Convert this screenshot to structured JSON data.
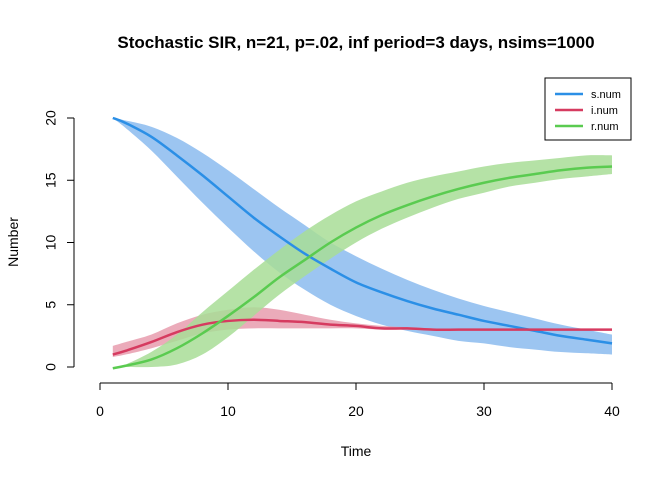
{
  "chart_data": {
    "type": "line",
    "title": "Stochastic SIR, n=21, p=.02, inf period=3 days, nsims=1000",
    "xlabel": "Time",
    "ylabel": "Number",
    "xlim": [
      0,
      40
    ],
    "ylim": [
      0,
      20
    ],
    "xticks": [
      0,
      10,
      20,
      30,
      40
    ],
    "yticks": [
      0,
      5,
      10,
      15,
      20
    ],
    "legend_position": "top-right",
    "grid": false,
    "x": [
      1,
      2,
      4,
      6,
      8,
      10,
      12,
      14,
      16,
      18,
      20,
      22,
      24,
      26,
      28,
      30,
      32,
      34,
      36,
      38,
      40
    ],
    "series": [
      {
        "name": "s.num",
        "color": "#2B8FE6",
        "band_color": "#8BBBEE",
        "mean": [
          20.0,
          19.6,
          18.5,
          17.0,
          15.4,
          13.7,
          12.0,
          10.5,
          9.1,
          7.9,
          6.8,
          6.0,
          5.3,
          4.7,
          4.2,
          3.7,
          3.3,
          2.9,
          2.5,
          2.2,
          1.9
        ],
        "lower": [
          20.0,
          19.2,
          17.4,
          15.3,
          13.2,
          11.2,
          9.3,
          7.6,
          6.2,
          5.0,
          4.1,
          3.4,
          2.9,
          2.5,
          2.1,
          1.9,
          1.6,
          1.4,
          1.2,
          1.1,
          1.0
        ],
        "upper": [
          20.0,
          19.8,
          19.3,
          18.4,
          17.2,
          15.8,
          14.3,
          12.8,
          11.4,
          10.0,
          8.9,
          7.9,
          7.0,
          6.2,
          5.5,
          4.9,
          4.4,
          3.9,
          3.4,
          3.0,
          2.6
        ]
      },
      {
        "name": "i.num",
        "color": "#D63B60",
        "band_color": "#E89CAE",
        "mean": [
          1.0,
          1.3,
          2.0,
          2.8,
          3.4,
          3.7,
          3.8,
          3.7,
          3.6,
          3.4,
          3.3,
          3.1,
          3.1,
          3.0,
          3.0,
          3.0,
          3.0,
          3.0,
          3.0,
          3.0,
          3.0
        ],
        "lower": [
          0.8,
          1.0,
          1.5,
          2.1,
          2.7,
          3.0,
          3.1,
          3.1,
          3.1,
          3.1,
          3.1,
          3.0,
          3.0,
          3.0,
          3.0,
          3.0,
          3.0,
          3.0,
          3.0,
          3.0,
          3.0
        ],
        "upper": [
          1.7,
          2.0,
          2.6,
          3.5,
          4.2,
          4.6,
          4.8,
          4.6,
          4.2,
          3.8,
          3.5,
          3.3,
          3.2,
          3.1,
          3.0,
          3.0,
          3.0,
          3.0,
          3.0,
          3.0,
          3.0
        ]
      },
      {
        "name": "r.num",
        "color": "#5ACB50",
        "band_color": "#A8DD96",
        "mean": [
          -0.1,
          0.1,
          0.6,
          1.5,
          2.7,
          4.1,
          5.6,
          7.2,
          8.6,
          10.0,
          11.2,
          12.2,
          13.0,
          13.7,
          14.3,
          14.8,
          15.2,
          15.5,
          15.8,
          16.0,
          16.1
        ],
        "lower": [
          -0.1,
          0.0,
          0.0,
          0.2,
          1.0,
          2.4,
          4.1,
          5.8,
          7.3,
          8.7,
          10.0,
          11.1,
          12.0,
          12.8,
          13.5,
          14.0,
          14.5,
          14.8,
          15.1,
          15.3,
          15.5
        ],
        "upper": [
          -0.1,
          0.2,
          1.2,
          2.6,
          4.4,
          6.1,
          7.8,
          9.4,
          10.9,
          12.2,
          13.3,
          14.1,
          14.8,
          15.3,
          15.7,
          16.1,
          16.4,
          16.6,
          16.8,
          17.0,
          17.0
        ]
      }
    ]
  }
}
